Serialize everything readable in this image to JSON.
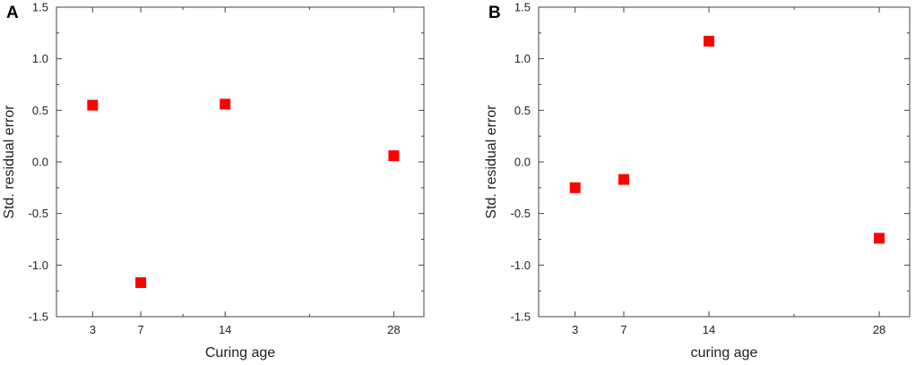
{
  "chart_data": [
    {
      "type": "scatter",
      "panel_label": "A",
      "xlabel": "Curing age",
      "ylabel": "Std. residual error",
      "x_ticks": [
        3,
        7,
        14,
        28
      ],
      "x_tick_labels": [
        "3",
        "7",
        "14",
        "28"
      ],
      "x_minor_ticks": [
        10.5,
        21
      ],
      "xlim": [
        0,
        30.5
      ],
      "ylim": [
        -1.5,
        1.5
      ],
      "y_ticks": [
        -1.5,
        -1.0,
        -0.5,
        0.0,
        0.5,
        1.0,
        1.5
      ],
      "y_tick_labels": [
        "-1.5",
        "-1.0",
        "-0.5",
        "0.0",
        "0.5",
        "1.0",
        "1.5"
      ],
      "grid": false,
      "marker": "square",
      "color": "#ff0000",
      "series": [
        {
          "x": [
            3,
            7,
            14,
            28
          ],
          "y": [
            0.55,
            -1.17,
            0.56,
            0.06
          ]
        }
      ]
    },
    {
      "type": "scatter",
      "panel_label": "B",
      "xlabel": "curing age",
      "ylabel": "Std. residual error",
      "x_ticks": [
        3,
        7,
        14,
        28
      ],
      "x_tick_labels": [
        "3",
        "7",
        "14",
        "28"
      ],
      "x_minor_ticks": [
        21
      ],
      "xlim": [
        0,
        30.5
      ],
      "ylim": [
        -1.5,
        1.5
      ],
      "y_ticks": [
        -1.5,
        -1.0,
        -0.5,
        0.0,
        0.5,
        1.0,
        1.5
      ],
      "y_tick_labels": [
        "-1.5",
        "-1.0",
        "-0.5",
        "0.0",
        "0.5",
        "1.0",
        "1.5"
      ],
      "grid": false,
      "marker": "square",
      "color": "#ff0000",
      "series": [
        {
          "x": [
            3,
            7,
            14,
            28
          ],
          "y": [
            -0.25,
            -0.17,
            1.17,
            -0.74
          ]
        }
      ]
    }
  ]
}
